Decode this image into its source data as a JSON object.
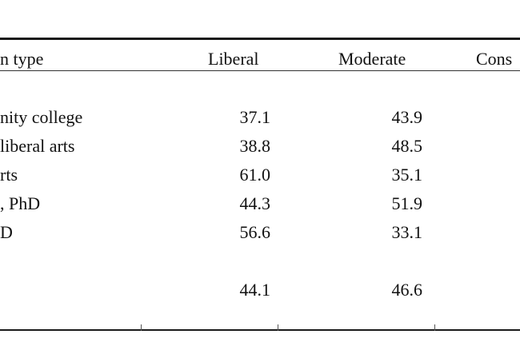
{
  "table": {
    "headers": {
      "type": "n type",
      "liberal": "Liberal",
      "moderate": "Moderate",
      "conservative": "Cons"
    },
    "rows": [
      {
        "label": "nity college",
        "liberal": "37.1",
        "moderate": "43.9"
      },
      {
        "label": "liberal arts",
        "liberal": "38.8",
        "moderate": "48.5"
      },
      {
        "label": "rts",
        "liberal": "61.0",
        "moderate": "35.1"
      },
      {
        "label": ", PhD",
        "liberal": "44.3",
        "moderate": "51.9"
      },
      {
        "label": "D",
        "liberal": "56.6",
        "moderate": "33.1"
      }
    ],
    "total": {
      "liberal": "44.1",
      "moderate": "46.6"
    }
  }
}
